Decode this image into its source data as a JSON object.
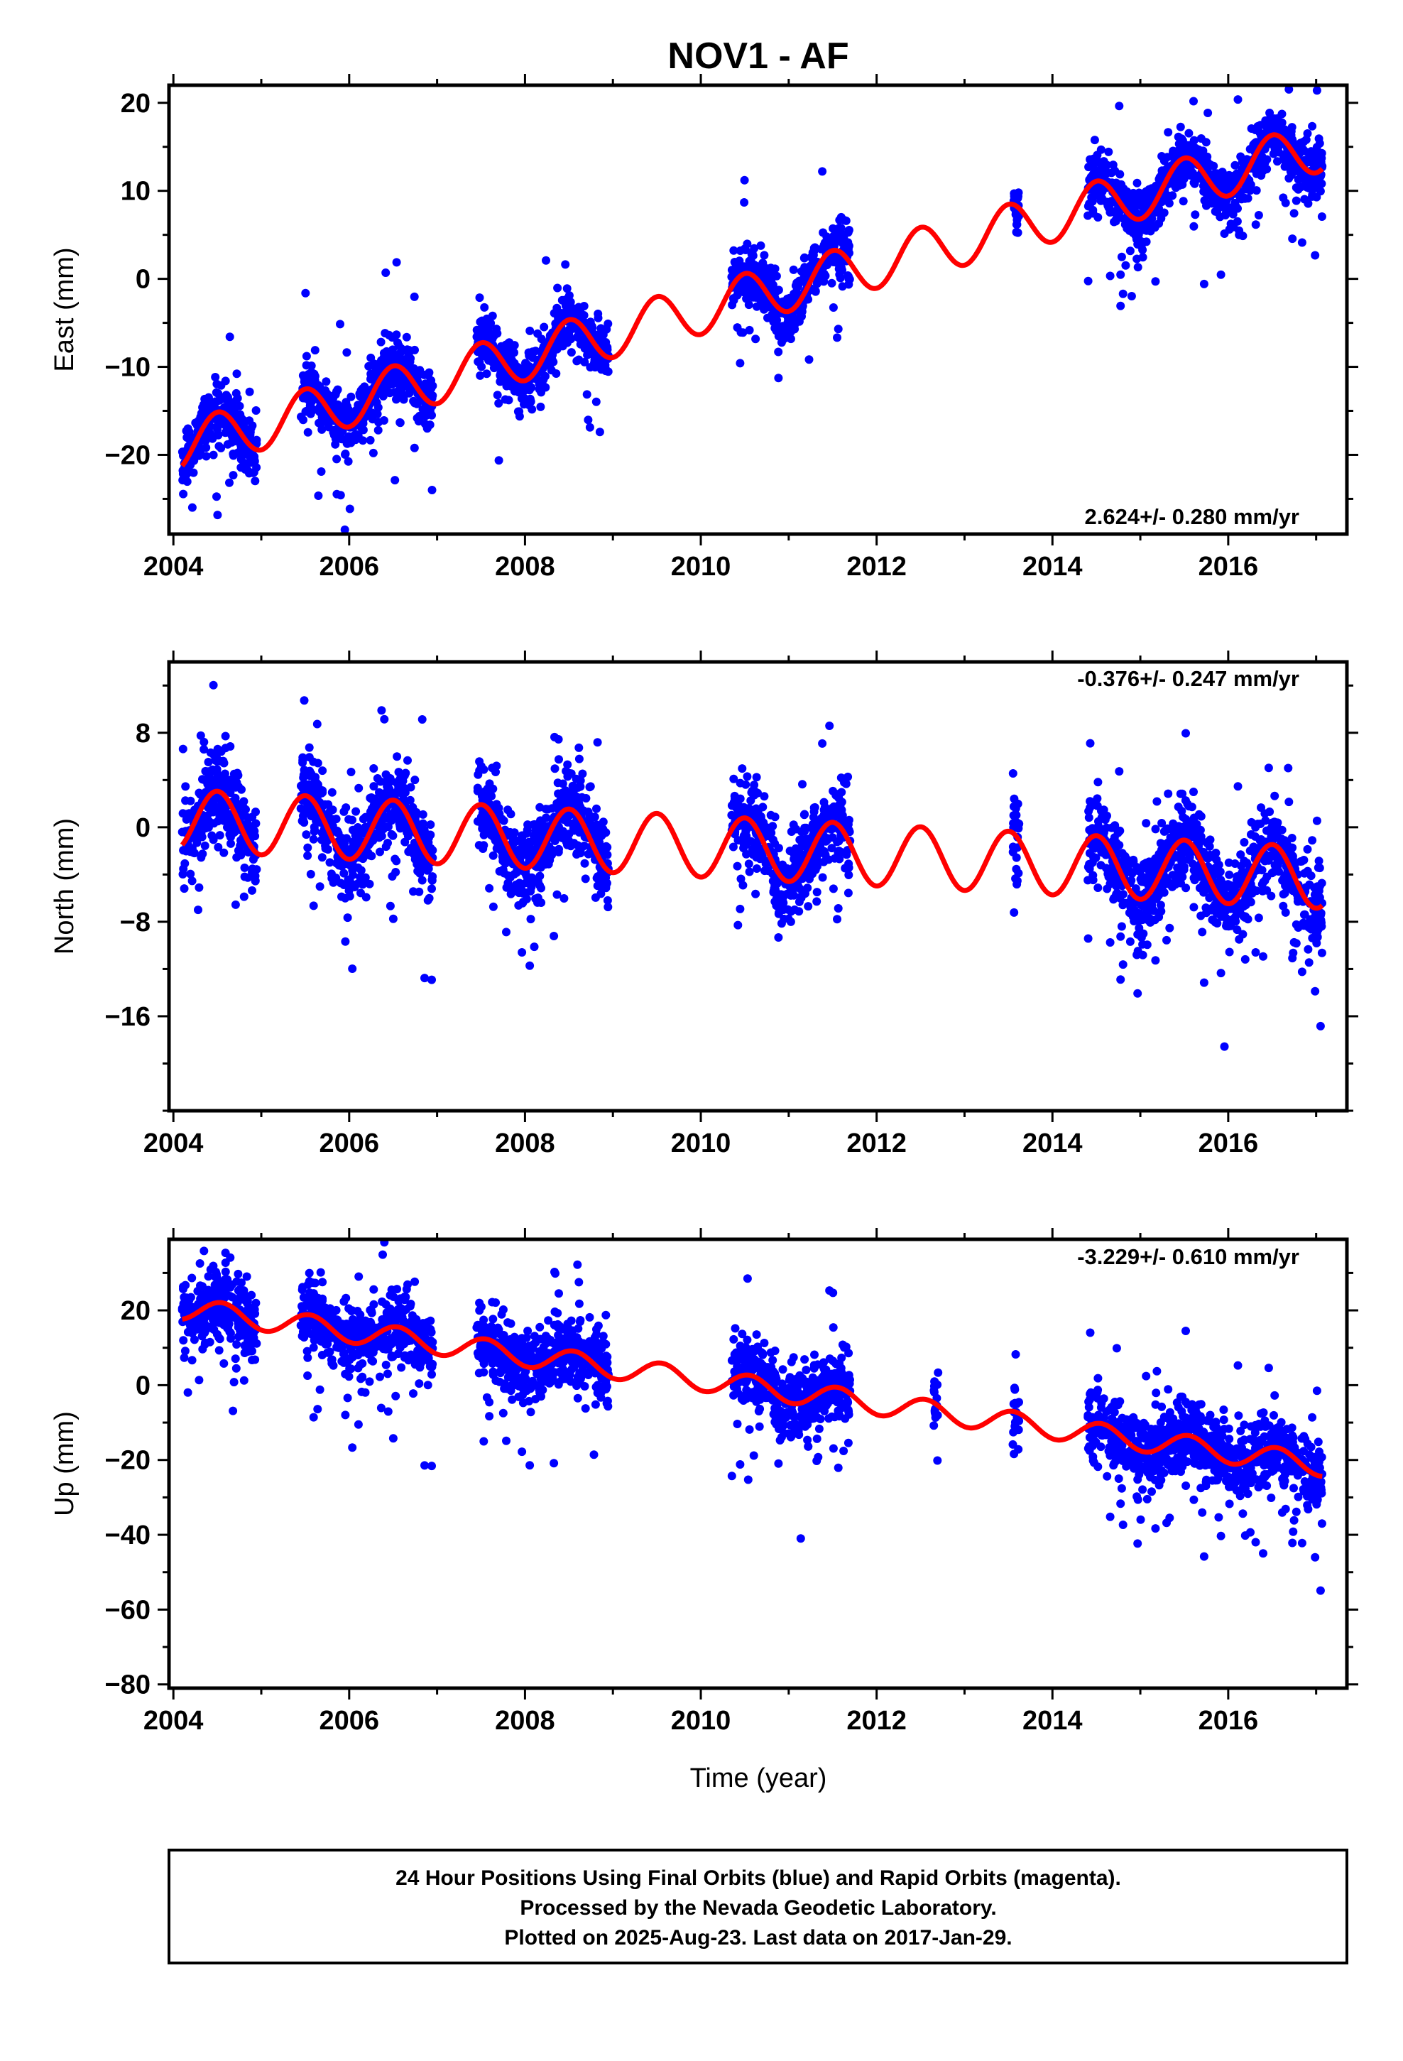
{
  "title": "NOV1 - AF",
  "xlabel": "Time (year)",
  "footer": {
    "lines": [
      "24 Hour Positions Using Final Orbits (blue) and Rapid Orbits (magenta).",
      "Processed by the Nevada Geodetic Laboratory.",
      "Plotted on 2025-Aug-23. Last data on 2017-Jan-29."
    ]
  },
  "colors": {
    "points": "#0000ff",
    "fit": "#ff0000",
    "frame": "#000000"
  },
  "chart_data": [
    {
      "type": "scatter",
      "ylabel": "East (mm)",
      "rate_label": "2.624+/- 0.280 mm/yr",
      "xlim": [
        2003.95,
        2017.35
      ],
      "ylim": [
        -29,
        22
      ],
      "xticks": [
        2004,
        2006,
        2008,
        2010,
        2012,
        2014,
        2016
      ],
      "yticks": [
        -20,
        -10,
        0,
        10,
        20
      ],
      "fit": {
        "intercept": -19.0,
        "slope": 2.624,
        "amp": 2.8,
        "peak_phase": 0.5
      },
      "data_segments": [
        [
          2004.1,
          2004.95
        ],
        [
          2005.45,
          2006.95
        ],
        [
          2007.45,
          2008.95
        ],
        [
          2010.35,
          2011.7
        ],
        [
          2013.55,
          2013.62
        ],
        [
          2014.4,
          2017.07
        ]
      ],
      "scatter_sigma": 1.6,
      "scatter_outlier_rate": 0.04,
      "series": [
        {
          "name": "24 Hour Positions",
          "color": "#0000ff"
        },
        {
          "name": "Model fit",
          "color": "#ff0000"
        }
      ]
    },
    {
      "type": "scatter",
      "ylabel": "North (mm)",
      "rate_label": "-0.376+/- 0.247 mm/yr",
      "xlim": [
        2003.95,
        2017.35
      ],
      "ylim": [
        -24,
        14
      ],
      "xticks": [
        2004,
        2006,
        2008,
        2010,
        2012,
        2014,
        2016
      ],
      "yticks": [
        -16,
        -8,
        0,
        8
      ],
      "fit": {
        "intercept": 0.6,
        "slope": -0.376,
        "amp": 2.6,
        "peak_phase": 0.5
      },
      "data_segments": [
        [
          2004.1,
          2004.95
        ],
        [
          2005.45,
          2006.95
        ],
        [
          2007.45,
          2008.95
        ],
        [
          2010.35,
          2011.7
        ],
        [
          2013.55,
          2013.62
        ],
        [
          2014.4,
          2017.07
        ]
      ],
      "scatter_sigma": 1.7,
      "scatter_outlier_rate": 0.05,
      "series": [
        {
          "name": "24 Hour Positions",
          "color": "#0000ff"
        },
        {
          "name": "Model fit",
          "color": "#ff0000"
        }
      ]
    },
    {
      "type": "scatter",
      "ylabel": "Up (mm)",
      "rate_label": "-3.229+/- 0.610 mm/yr",
      "xlim": [
        2003.95,
        2017.35
      ],
      "ylim": [
        -81,
        39
      ],
      "xticks": [
        2004,
        2006,
        2008,
        2010,
        2012,
        2014,
        2016
      ],
      "yticks": [
        -80,
        -60,
        -40,
        -20,
        0,
        20
      ],
      "fit": {
        "intercept": 20.5,
        "slope": -3.229,
        "amp": 3.0,
        "peak_phase": 0.55
      },
      "data_segments": [
        [
          2004.1,
          2004.95
        ],
        [
          2005.45,
          2006.95
        ],
        [
          2007.45,
          2008.95
        ],
        [
          2010.35,
          2011.7
        ],
        [
          2012.65,
          2012.7
        ],
        [
          2013.55,
          2013.62
        ],
        [
          2014.4,
          2017.07
        ]
      ],
      "scatter_sigma": 4.5,
      "scatter_outlier_rate": 0.05,
      "series": [
        {
          "name": "24 Hour Positions",
          "color": "#0000ff"
        },
        {
          "name": "Model fit",
          "color": "#ff0000"
        }
      ]
    }
  ]
}
